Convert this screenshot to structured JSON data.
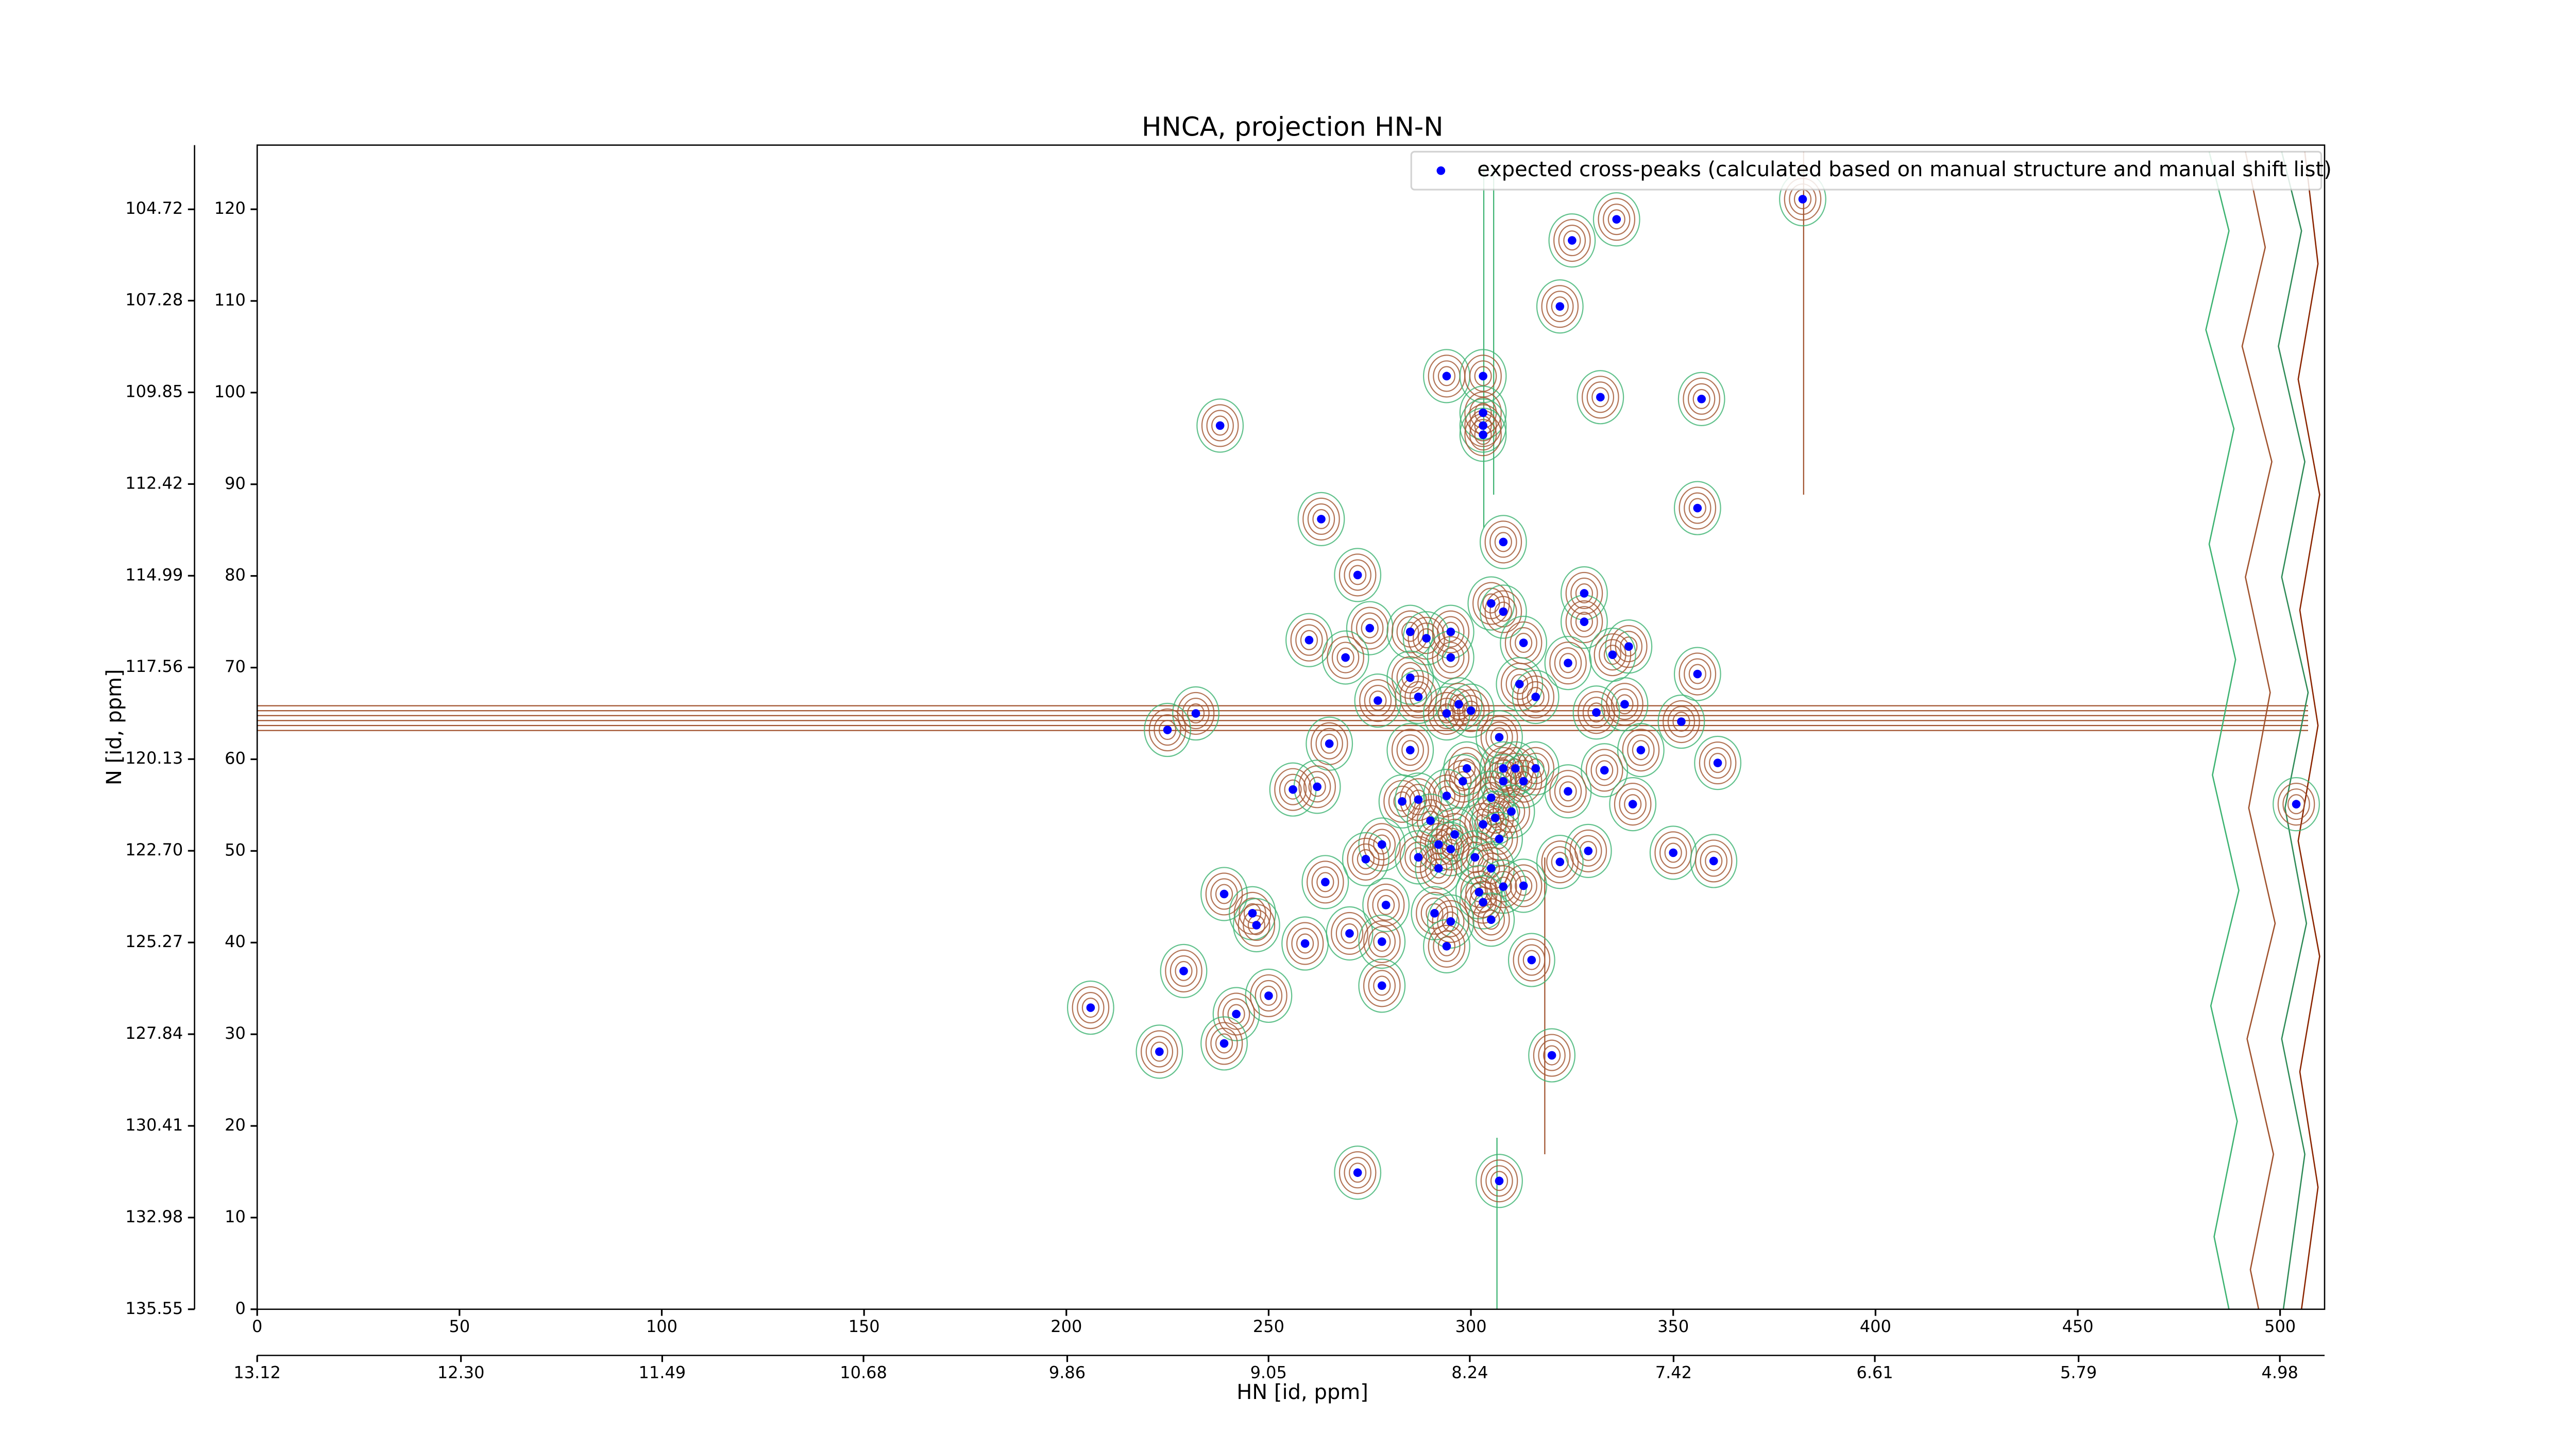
{
  "chart_data": {
    "type": "scatter",
    "title": "HNCA, projection HN-N",
    "xlabel": "HN [id, ppm]",
    "ylabel": "N [id, ppm]",
    "legend": "upper right",
    "xlim": [
      0,
      511
    ],
    "xticks": [
      0,
      50,
      100,
      150,
      200,
      250,
      300,
      350,
      400,
      450,
      500
    ],
    "ylim": [
      0,
      127
    ],
    "yticks": [
      0,
      10,
      20,
      30,
      40,
      50,
      60,
      70,
      80,
      90,
      100,
      110,
      120
    ],
    "x2lim": [
      13.12,
      4.8
    ],
    "x2ticks": [
      13.12,
      {
        "value": 12.3,
        "label": "12.30"
      },
      11.49,
      10.68,
      9.86,
      9.05,
      8.24,
      7.42,
      6.61,
      5.79,
      4.98
    ],
    "y2lim": [
      135.55,
      102.92
    ],
    "y2ticks": [
      104.72,
      107.28,
      109.85,
      112.42,
      114.99,
      117.56,
      120.13,
      {
        "value": 122.7,
        "label": "122.70"
      },
      125.27,
      127.84,
      130.41,
      132.98,
      135.55
    ],
    "x": [
      382,
      336,
      325,
      322,
      294,
      303,
      332,
      357,
      303,
      303,
      303,
      238,
      356,
      263,
      308,
      272,
      328,
      305,
      308,
      328,
      275,
      285,
      295,
      260,
      289,
      313,
      339,
      335,
      269,
      295,
      324,
      356,
      285,
      312,
      287,
      277,
      316,
      338,
      297,
      300,
      294,
      331,
      232,
      352,
      225,
      307,
      265,
      285,
      342,
      361,
      333,
      299,
      308,
      311,
      316,
      308,
      313,
      298,
      256,
      262,
      324,
      283,
      287,
      294,
      305,
      340,
      310,
      290,
      303,
      306,
      296,
      307,
      292,
      295,
      278,
      274,
      329,
      350,
      360,
      287,
      301,
      322,
      292,
      305,
      264,
      313,
      308,
      302,
      239,
      303,
      279,
      291,
      246,
      247,
      305,
      295,
      270,
      259,
      278,
      294,
      315,
      229,
      278,
      250,
      242,
      206,
      239,
      223,
      320,
      272,
      307,
      504
    ],
    "series": [
      {
        "name": "expected cross-peaks (calculated based on manual structure and manual shift list)",
        "color": "#0000ff",
        "values": [
          121.1,
          118.9,
          116.6,
          109.4,
          101.8,
          101.8,
          99.5,
          99.3,
          97.8,
          96.4,
          95.4,
          96.4,
          87.4,
          86.2,
          83.7,
          80.1,
          78.1,
          77,
          76.1,
          75,
          74.3,
          73.9,
          73.9,
          73,
          73.2,
          72.7,
          72.3,
          71.4,
          71.1,
          71.1,
          70.5,
          69.3,
          68.9,
          68.2,
          66.8,
          66.4,
          66.8,
          66,
          66,
          65.3,
          65,
          65.1,
          65,
          64.1,
          63.2,
          62.4,
          61.7,
          61,
          61,
          59.6,
          58.8,
          59,
          59,
          59,
          59,
          57.6,
          57.6,
          57.6,
          56.7,
          57,
          56.5,
          55.4,
          55.6,
          56,
          55.8,
          55.1,
          54.3,
          53.3,
          52.9,
          53.6,
          51.8,
          51.3,
          50.7,
          50.2,
          50.7,
          49.1,
          50,
          49.8,
          48.9,
          49.3,
          49.3,
          48.8,
          48.1,
          48.1,
          46.6,
          46.2,
          46.1,
          45.5,
          45.3,
          44.4,
          44.1,
          43.2,
          43.2,
          41.9,
          42.5,
          42.3,
          41,
          39.9,
          40.1,
          39.6,
          38.1,
          36.9,
          35.3,
          34.2,
          32.2,
          32.9,
          29,
          28.1,
          27.7,
          14.9,
          14,
          55.1
        ]
      }
    ]
  }
}
